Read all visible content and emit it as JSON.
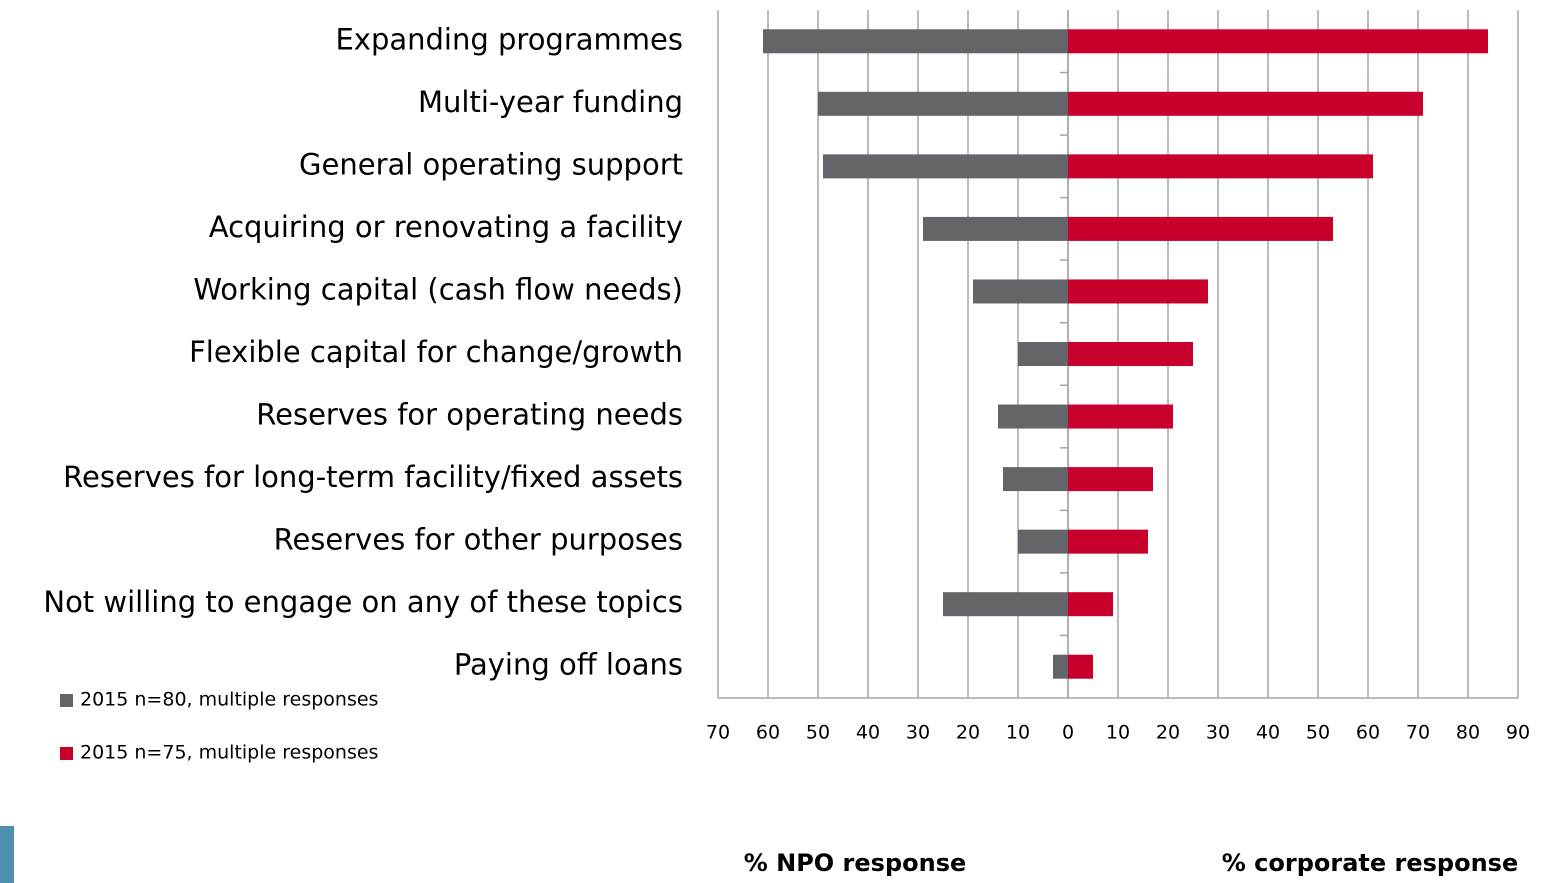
{
  "chart_data": {
    "type": "butterfly-bar",
    "categories": [
      "Expanding programmes",
      "Multi-year funding",
      "General operating support",
      "Acquiring or renovating a facility",
      "Working capital (cash flow needs)",
      "Flexible capital for change/growth",
      "Reserves for operating needs",
      "Reserves for long-term facility/fixed assets",
      "Reserves for other purposes",
      "Not willing to engage on any of these topics",
      "Paying off loans"
    ],
    "series": [
      {
        "name": "2015 n=80, multiple responses",
        "color": "#636569",
        "values": [
          -61,
          -50,
          -49,
          -29,
          -19,
          -10,
          -14,
          -13,
          -10,
          -25,
          -3
        ]
      },
      {
        "name": "2015 n=75, multiple responses",
        "color": "#c8002c",
        "values": [
          84,
          71,
          61,
          53,
          28,
          25,
          21,
          17,
          16,
          9,
          5
        ]
      }
    ],
    "xlim": [
      -70,
      90
    ],
    "xticks": [
      {
        "value": -70,
        "label": "70"
      },
      {
        "value": -60,
        "label": "60"
      },
      {
        "value": -50,
        "label": "50"
      },
      {
        "value": -40,
        "label": "40"
      },
      {
        "value": -30,
        "label": "30"
      },
      {
        "value": -20,
        "label": "20"
      },
      {
        "value": -10,
        "label": "10"
      },
      0,
      10,
      20,
      30,
      40,
      50,
      60,
      70,
      80,
      90
    ],
    "x_axis_label_left": "% NPO response",
    "x_axis_label_right": "% corporate response",
    "grid": true
  }
}
